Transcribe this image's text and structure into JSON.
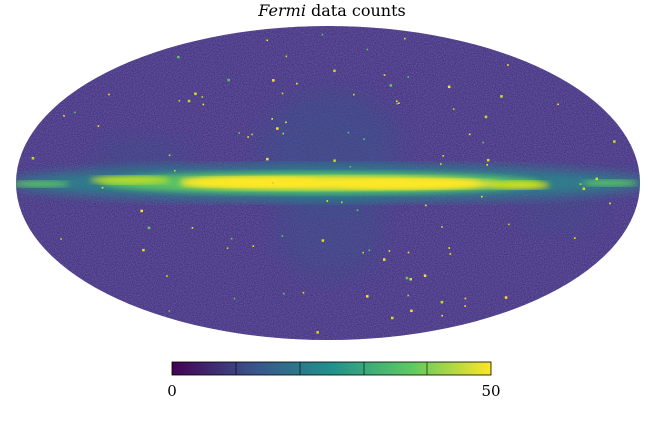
{
  "figure": {
    "title_italic": "Fermi",
    "title_rest": " data counts",
    "colormap": "viridis",
    "colors": [
      "#440154",
      "#3b528b",
      "#21918c",
      "#5ec962",
      "#fde725"
    ]
  },
  "colorbar": {
    "min_label": "0",
    "max_label": "50",
    "min": 0,
    "max": 50
  }
}
